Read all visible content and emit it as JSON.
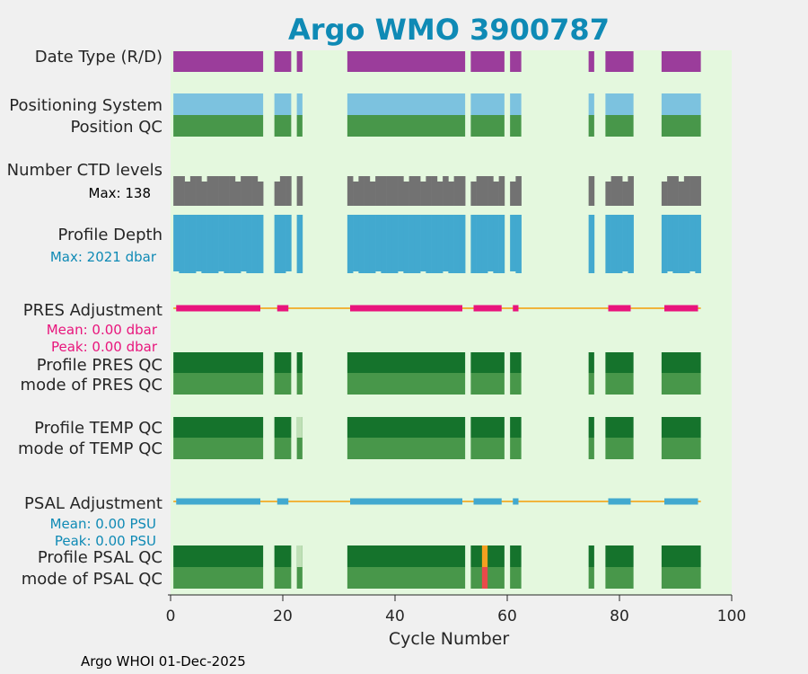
{
  "chart_data": {
    "type": "timeline",
    "title": "Argo WMO 3900787",
    "xlabel": "Cycle Number",
    "xlim": [
      0,
      100
    ],
    "xticks": [
      0,
      20,
      40,
      60,
      80,
      100
    ],
    "footer": "Argo WHOI 01-Dec-2025",
    "colors": {
      "title": "#0f8ab5",
      "plot_bg": "#e4f8de",
      "data_type": "#9b3d9b",
      "positioning": "#7cc2df",
      "qc_good": "#48974a",
      "qc_profile": "#15732c",
      "qc_light": "#bfe0b6",
      "ctd": "#727272",
      "depth": "#42a9cf",
      "pres_adj": "#e8157c",
      "psal_adj": "#42a9cf",
      "adj_line": "#f0b43c",
      "qc_orange": "#f4a020",
      "qc_red": "#e84a4a",
      "pres_text": "#e8157c",
      "psal_text": "#0f8ab5",
      "depth_text": "#0f8ab5"
    },
    "cycle_segments": [
      [
        0.5,
        16.5
      ],
      [
        18.5,
        21.5
      ],
      [
        22.5,
        23.5
      ],
      [
        31.5,
        52.5
      ],
      [
        53.5,
        59.5
      ],
      [
        60.5,
        62.5
      ],
      [
        74.5,
        75.5
      ],
      [
        77.5,
        82.5
      ],
      [
        87.5,
        94.5
      ]
    ],
    "adjustment_segments": [
      [
        1,
        16
      ],
      [
        19,
        21
      ],
      [
        32,
        52
      ],
      [
        54,
        59
      ],
      [
        61,
        62
      ],
      [
        78,
        82
      ],
      [
        88,
        94
      ]
    ],
    "adjustment_line_range": [
      0.5,
      94.5
    ],
    "rows": [
      {
        "key": "data_type",
        "label": "Date Type (R/D)"
      },
      {
        "key": "positioning",
        "label": "Positioning System"
      },
      {
        "key": "position_qc",
        "label": "Position QC"
      },
      {
        "key": "ctd_levels",
        "label": "Number CTD levels",
        "note": "Max: 138"
      },
      {
        "key": "profile_depth",
        "label": "Profile Depth",
        "note": "Max: 2021 dbar"
      },
      {
        "key": "pres_adj",
        "label": "PRES Adjustment",
        "note_mean": "Mean: 0.00 dbar",
        "note_peak": "Peak: 0.00 dbar"
      },
      {
        "key": "pres_profile_qc",
        "label": "Profile PRES QC"
      },
      {
        "key": "pres_mode_qc",
        "label": "mode of PRES QC"
      },
      {
        "key": "temp_profile_qc",
        "label": "Profile TEMP QC"
      },
      {
        "key": "temp_mode_qc",
        "label": "mode of TEMP QC"
      },
      {
        "key": "psal_adj",
        "label": "PSAL Adjustment",
        "note_mean": "Mean: 0.00 PSU",
        "note_peak": "Peak: 0.00 PSU"
      },
      {
        "key": "psal_profile_qc",
        "label": "Profile PSAL QC"
      },
      {
        "key": "psal_mode_qc",
        "label": "mode of PSAL QC"
      }
    ],
    "special_cells": [
      {
        "row": "temp_profile_qc",
        "cycle": 23,
        "color": "qc_light"
      },
      {
        "row": "psal_profile_qc",
        "cycle": 23,
        "color": "qc_light"
      },
      {
        "row": "psal_profile_qc",
        "cycle": 56,
        "color": "qc_orange"
      },
      {
        "row": "psal_mode_qc",
        "cycle": 56,
        "color": "qc_red"
      }
    ],
    "ctd_short_cycles": [
      3,
      6,
      12,
      16,
      19,
      33,
      36,
      42,
      45,
      48,
      50,
      54,
      58,
      61,
      78,
      81,
      88,
      91
    ]
  }
}
